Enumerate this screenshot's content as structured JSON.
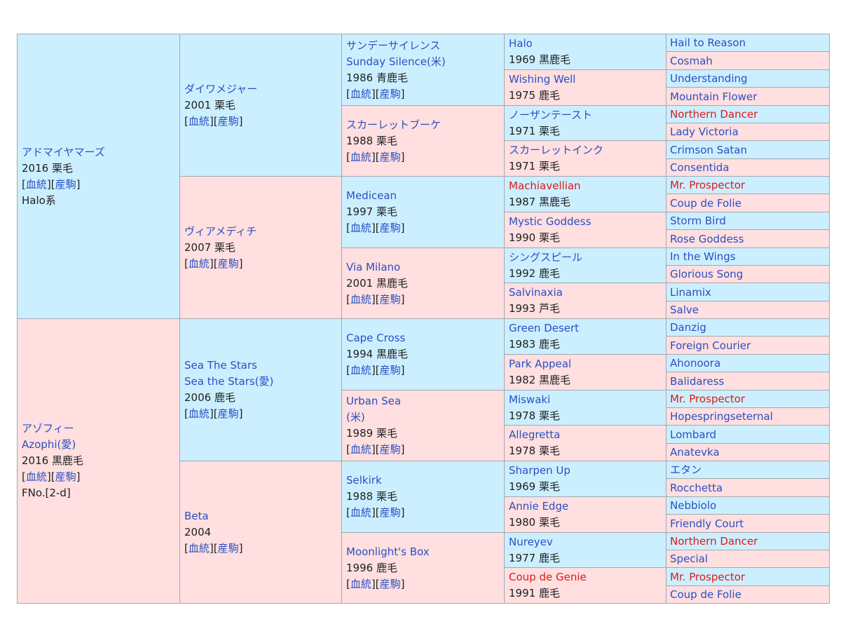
{
  "bracket_open": "[",
  "bracket_mid": "][",
  "bracket_close": "]",
  "columns": [
    [
      {
        "lines": [
          {
            "t": "アドマイヤマーズ",
            "k": "link"
          },
          {
            "t": "2016 栗毛"
          },
          {
            "t": "血統",
            "k": "refs"
          },
          {
            "t": "Halo系"
          }
        ],
        "refs": [
          "血統",
          "産駒"
        ]
      },
      {
        "lines": [
          {
            "t": "アゾフィー",
            "k": "link"
          },
          {
            "t": "Azophi(愛)",
            "k": "link"
          },
          {
            "t": "2016 黒鹿毛"
          },
          {
            "t": "refs",
            "k": "refs"
          },
          {
            "t": "FNo.[2-d]"
          }
        ],
        "refs": [
          "血統",
          "産駒"
        ]
      }
    ],
    [
      {
        "lines": [
          {
            "t": "ダイワメジャー",
            "k": "link"
          },
          {
            "t": "2001 栗毛"
          },
          {
            "t": "refs",
            "k": "refs"
          }
        ],
        "refs": [
          "血統",
          "産駒"
        ]
      },
      {
        "lines": [
          {
            "t": "ヴィアメディチ",
            "k": "link"
          },
          {
            "t": "2007 栗毛"
          },
          {
            "t": "refs",
            "k": "refs"
          }
        ],
        "refs": [
          "血統",
          "産駒"
        ]
      },
      {
        "lines": [
          {
            "t": "Sea The Stars",
            "k": "link"
          },
          {
            "t": "Sea the Stars(愛)",
            "k": "link"
          },
          {
            "t": "2006 鹿毛"
          },
          {
            "t": "refs",
            "k": "refs"
          }
        ],
        "refs": [
          "血統",
          "産駒"
        ]
      },
      {
        "lines": [
          {
            "t": "Beta",
            "k": "link"
          },
          {
            "t": "2004"
          },
          {
            "t": "refs",
            "k": "refs"
          }
        ],
        "refs": [
          "血統",
          "産駒"
        ]
      }
    ],
    [
      {
        "lines": [
          {
            "t": "サンデーサイレンス",
            "k": "link"
          },
          {
            "t": "Sunday Silence(米)",
            "k": "link"
          },
          {
            "t": "1986 青鹿毛"
          },
          {
            "t": "refs",
            "k": "refs"
          }
        ],
        "refs": [
          "血統",
          "産駒"
        ]
      },
      {
        "lines": [
          {
            "t": "スカーレットブーケ",
            "k": "link"
          },
          {
            "t": "1988 栗毛"
          },
          {
            "t": "refs",
            "k": "refs"
          }
        ],
        "refs": [
          "血統",
          "産駒"
        ]
      },
      {
        "lines": [
          {
            "t": "Medicean",
            "k": "link"
          },
          {
            "t": "1997 栗毛"
          },
          {
            "t": "refs",
            "k": "refs"
          }
        ],
        "refs": [
          "血統",
          "産駒"
        ]
      },
      {
        "lines": [
          {
            "t": "Via Milano",
            "k": "link"
          },
          {
            "t": "2001 黒鹿毛"
          },
          {
            "t": "refs",
            "k": "refs"
          }
        ],
        "refs": [
          "血統",
          "産駒"
        ]
      },
      {
        "lines": [
          {
            "t": "Cape Cross",
            "k": "link"
          },
          {
            "t": "1994 黒鹿毛"
          },
          {
            "t": "refs",
            "k": "refs"
          }
        ],
        "refs": [
          "血統",
          "産駒"
        ]
      },
      {
        "lines": [
          {
            "t": "Urban Sea",
            "k": "link"
          },
          {
            "t": "(米)",
            "k": "link"
          },
          {
            "t": "1989 栗毛"
          },
          {
            "t": "refs",
            "k": "refs"
          }
        ],
        "refs": [
          "血統",
          "産駒"
        ]
      },
      {
        "lines": [
          {
            "t": "Selkirk",
            "k": "link"
          },
          {
            "t": "1988 栗毛"
          },
          {
            "t": "refs",
            "k": "refs"
          }
        ],
        "refs": [
          "血統",
          "産駒"
        ]
      },
      {
        "lines": [
          {
            "t": "Moonlight's Box",
            "k": "link"
          },
          {
            "t": "1996 鹿毛"
          },
          {
            "t": "refs",
            "k": "refs"
          }
        ],
        "refs": [
          "血統",
          "産駒"
        ]
      }
    ],
    [
      {
        "lines": [
          {
            "t": "Halo",
            "k": "link"
          },
          {
            "t": "1969 黒鹿毛"
          }
        ]
      },
      {
        "lines": [
          {
            "t": "Wishing Well",
            "k": "link"
          },
          {
            "t": "1975 鹿毛"
          }
        ]
      },
      {
        "lines": [
          {
            "t": "ノーザンテースト",
            "k": "link"
          },
          {
            "t": "1971 栗毛"
          }
        ]
      },
      {
        "lines": [
          {
            "t": "スカーレットインク",
            "k": "link"
          },
          {
            "t": "1971 栗毛"
          }
        ]
      },
      {
        "lines": [
          {
            "t": "Machiavellian",
            "k": "red"
          },
          {
            "t": "1987 黒鹿毛"
          }
        ]
      },
      {
        "lines": [
          {
            "t": "Mystic Goddess",
            "k": "link"
          },
          {
            "t": "1990 栗毛"
          }
        ]
      },
      {
        "lines": [
          {
            "t": "シングスピール",
            "k": "link"
          },
          {
            "t": "1992 鹿毛"
          }
        ]
      },
      {
        "lines": [
          {
            "t": "Salvinaxia",
            "k": "link"
          },
          {
            "t": "1993 芦毛"
          }
        ]
      },
      {
        "lines": [
          {
            "t": "Green Desert",
            "k": "link"
          },
          {
            "t": "1983 鹿毛"
          }
        ]
      },
      {
        "lines": [
          {
            "t": "Park Appeal",
            "k": "link"
          },
          {
            "t": "1982 黒鹿毛"
          }
        ]
      },
      {
        "lines": [
          {
            "t": "Miswaki",
            "k": "link"
          },
          {
            "t": "1978 栗毛"
          }
        ]
      },
      {
        "lines": [
          {
            "t": "Allegretta",
            "k": "link"
          },
          {
            "t": "1978 栗毛"
          }
        ]
      },
      {
        "lines": [
          {
            "t": "Sharpen Up",
            "k": "link"
          },
          {
            "t": "1969 栗毛"
          }
        ]
      },
      {
        "lines": [
          {
            "t": "Annie Edge",
            "k": "link"
          },
          {
            "t": "1980 栗毛"
          }
        ]
      },
      {
        "lines": [
          {
            "t": "Nureyev",
            "k": "link"
          },
          {
            "t": "1977 鹿毛"
          }
        ]
      },
      {
        "lines": [
          {
            "t": "Coup de Genie",
            "k": "red"
          },
          {
            "t": "1991 鹿毛"
          }
        ]
      }
    ],
    [
      {
        "lines": [
          {
            "t": "Hail to Reason",
            "k": "link"
          }
        ]
      },
      {
        "lines": [
          {
            "t": "Cosmah",
            "k": "link"
          }
        ]
      },
      {
        "lines": [
          {
            "t": "Understanding",
            "k": "link"
          }
        ]
      },
      {
        "lines": [
          {
            "t": "Mountain Flower",
            "k": "link"
          }
        ]
      },
      {
        "lines": [
          {
            "t": "Northern Dancer",
            "k": "red"
          }
        ]
      },
      {
        "lines": [
          {
            "t": "Lady Victoria",
            "k": "link"
          }
        ]
      },
      {
        "lines": [
          {
            "t": "Crimson Satan",
            "k": "link"
          }
        ]
      },
      {
        "lines": [
          {
            "t": "Consentida",
            "k": "link"
          }
        ]
      },
      {
        "lines": [
          {
            "t": "Mr. Prospector",
            "k": "red"
          }
        ]
      },
      {
        "lines": [
          {
            "t": "Coup de Folie",
            "k": "link"
          }
        ]
      },
      {
        "lines": [
          {
            "t": "Storm Bird",
            "k": "link"
          }
        ]
      },
      {
        "lines": [
          {
            "t": "Rose Goddess",
            "k": "link"
          }
        ]
      },
      {
        "lines": [
          {
            "t": "In the Wings",
            "k": "link"
          }
        ]
      },
      {
        "lines": [
          {
            "t": "Glorious Song",
            "k": "link"
          }
        ]
      },
      {
        "lines": [
          {
            "t": "Linamix",
            "k": "link"
          }
        ]
      },
      {
        "lines": [
          {
            "t": "Salve",
            "k": "link"
          }
        ]
      },
      {
        "lines": [
          {
            "t": "Danzig",
            "k": "link"
          }
        ]
      },
      {
        "lines": [
          {
            "t": "Foreign Courier",
            "k": "link"
          }
        ]
      },
      {
        "lines": [
          {
            "t": "Ahonoora",
            "k": "link"
          }
        ]
      },
      {
        "lines": [
          {
            "t": "Balidaress",
            "k": "link"
          }
        ]
      },
      {
        "lines": [
          {
            "t": "Mr. Prospector",
            "k": "red"
          }
        ]
      },
      {
        "lines": [
          {
            "t": "Hopespringseternal",
            "k": "link"
          }
        ]
      },
      {
        "lines": [
          {
            "t": "Lombard",
            "k": "link"
          }
        ]
      },
      {
        "lines": [
          {
            "t": "Anatevka",
            "k": "link"
          }
        ]
      },
      {
        "lines": [
          {
            "t": "エタン",
            "k": "link"
          }
        ]
      },
      {
        "lines": [
          {
            "t": "Rocchetta",
            "k": "link"
          }
        ]
      },
      {
        "lines": [
          {
            "t": "Nebbiolo",
            "k": "link"
          }
        ]
      },
      {
        "lines": [
          {
            "t": "Friendly Court",
            "k": "link"
          }
        ]
      },
      {
        "lines": [
          {
            "t": "Northern Dancer",
            "k": "red"
          }
        ]
      },
      {
        "lines": [
          {
            "t": "Special",
            "k": "link"
          }
        ]
      },
      {
        "lines": [
          {
            "t": "Mr. Prospector",
            "k": "red"
          }
        ]
      },
      {
        "lines": [
          {
            "t": "Coup de Folie",
            "k": "link"
          }
        ]
      }
    ]
  ],
  "colors": {
    "sire_bg": "#ccefff",
    "dam_bg": "#ffdfdf",
    "link": "#2a4fc4",
    "inbreed": "#e01818",
    "border": "#a2a9b1"
  }
}
